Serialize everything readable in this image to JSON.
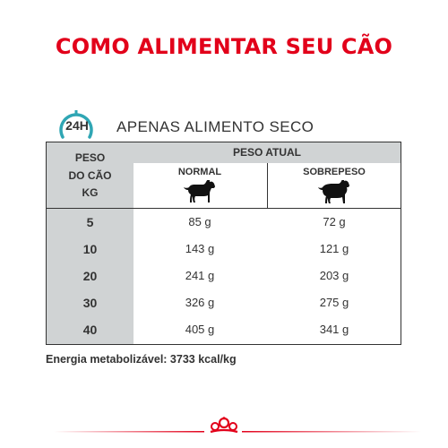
{
  "title": "COMO ALIMENTAR SEU CÃO",
  "header": {
    "clock_label": "24H",
    "label": "APENAS ALIMENTO SECO"
  },
  "table": {
    "left_header": [
      "PESO",
      "DO CÃO",
      "KG"
    ],
    "group_header": "PESO ATUAL",
    "columns": [
      "NORMAL",
      "SOBREPESO"
    ],
    "rows": [
      {
        "kg": "5",
        "normal": "85 g",
        "sobrepeso": "72 g"
      },
      {
        "kg": "10",
        "normal": "143 g",
        "sobrepeso": "121 g"
      },
      {
        "kg": "20",
        "normal": "241 g",
        "sobrepeso": "203 g"
      },
      {
        "kg": "30",
        "normal": "326 g",
        "sobrepeso": "275 g"
      },
      {
        "kg": "40",
        "normal": "405 g",
        "sobrepeso": "341 g"
      }
    ]
  },
  "energy": "Energia metabolizável: 3733 kcal/kg",
  "colors": {
    "brand_red": "#e2001a",
    "clock_teal": "#2fa6b4",
    "table_gray": "#d0d3d4",
    "text": "#333333"
  },
  "icons": [
    "clock-24h-icon",
    "normal-dog-icon",
    "overweight-dog-icon",
    "royal-canin-crown-icon"
  ]
}
